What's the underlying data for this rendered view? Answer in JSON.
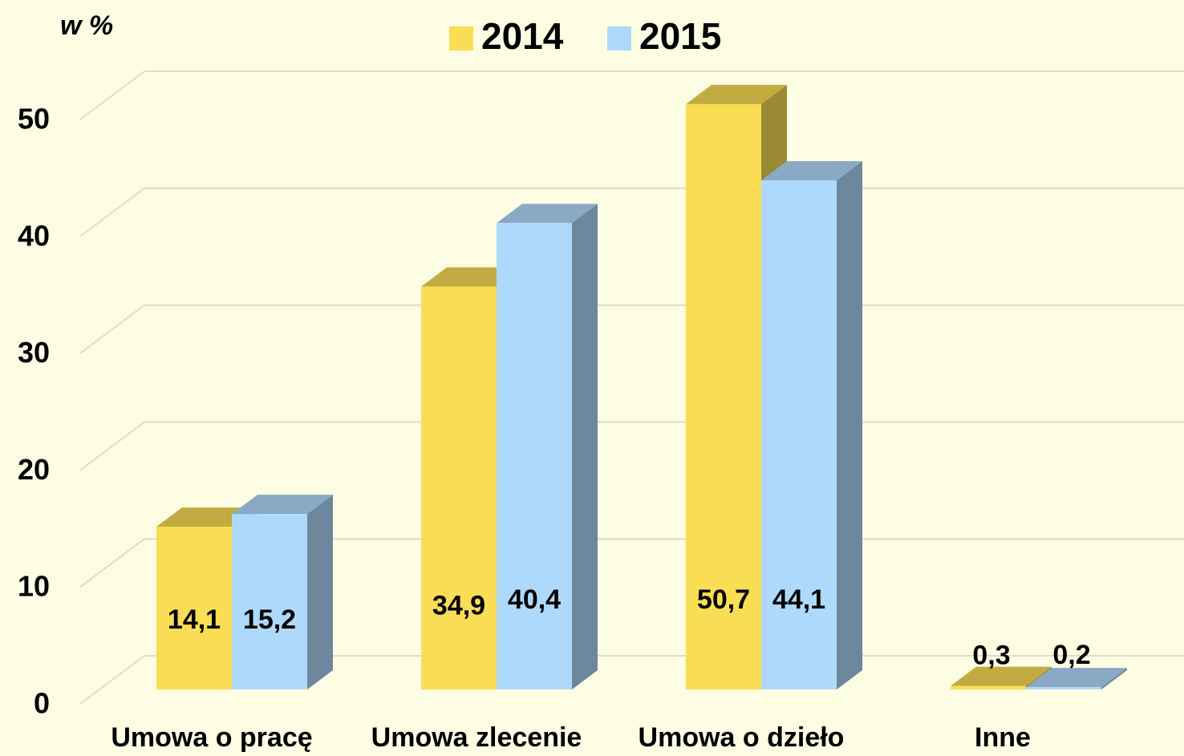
{
  "chart_data": {
    "type": "bar",
    "y_label": "w %",
    "categories": [
      "Umowa o pracę",
      "Umowa zlecenie",
      "Umowa o dzieło",
      "Inne"
    ],
    "series": [
      {
        "name": "2014",
        "color": "#f9dd55",
        "values": [
          14.1,
          34.9,
          50.7,
          0.3
        ],
        "value_labels": [
          "14,1",
          "34,9",
          "50,7",
          "0,3"
        ]
      },
      {
        "name": "2015",
        "color": "#afd9fb",
        "values": [
          15.2,
          40.4,
          44.1,
          0.2
        ],
        "value_labels": [
          "15,2",
          "40,4",
          "44,1",
          "0,2"
        ]
      }
    ],
    "ylim": [
      0,
      50
    ],
    "yticks": [
      0,
      10,
      20,
      30,
      40,
      50
    ],
    "grid": true,
    "legend": "top"
  }
}
